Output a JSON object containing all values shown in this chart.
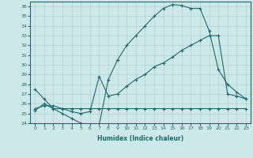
{
  "xlabel": "Humidex (Indice chaleur)",
  "xlim": [
    -0.5,
    23.5
  ],
  "ylim": [
    24,
    36.5
  ],
  "yticks": [
    24,
    25,
    26,
    27,
    28,
    29,
    30,
    31,
    32,
    33,
    34,
    35,
    36
  ],
  "xticks": [
    0,
    1,
    2,
    3,
    4,
    5,
    6,
    7,
    8,
    9,
    10,
    11,
    12,
    13,
    14,
    15,
    16,
    17,
    18,
    19,
    20,
    21,
    22,
    23
  ],
  "bg_color": "#cde8e8",
  "grid_color": "#b0d0d0",
  "line_color": "#1a6b6b",
  "curves": [
    {
      "x": [
        0,
        1,
        2,
        3,
        4,
        5,
        6,
        7,
        8,
        9,
        10,
        11,
        12,
        13,
        14,
        15,
        16,
        17,
        18,
        19,
        20,
        21,
        22,
        23
      ],
      "y": [
        27.5,
        26.5,
        25.5,
        25.0,
        24.5,
        24.0,
        23.8,
        23.8,
        28.5,
        30.5,
        32.0,
        33.0,
        34.0,
        35.0,
        35.8,
        36.2,
        36.1,
        35.8,
        35.8,
        33.5,
        29.5,
        28.0,
        27.2,
        26.5
      ]
    },
    {
      "x": [
        0,
        1,
        2,
        3,
        4,
        5,
        6,
        7,
        8,
        9,
        10,
        11,
        12,
        13,
        14,
        15,
        16,
        17,
        18,
        19,
        20,
        21,
        22,
        23
      ],
      "y": [
        25.5,
        25.8,
        25.8,
        25.5,
        25.2,
        25.0,
        25.2,
        28.8,
        26.8,
        27.0,
        27.8,
        28.5,
        29.0,
        29.8,
        30.2,
        30.8,
        31.5,
        32.0,
        32.5,
        33.0,
        33.0,
        27.0,
        26.8,
        26.5
      ]
    },
    {
      "x": [
        0,
        1,
        2,
        3,
        4,
        5,
        6,
        7,
        8,
        9,
        10,
        11,
        12,
        13,
        14,
        15,
        16,
        17,
        18,
        19,
        20,
        21,
        22,
        23
      ],
      "y": [
        25.3,
        26.0,
        25.5,
        25.5,
        25.5,
        25.5,
        25.5,
        25.5,
        25.5,
        25.5,
        25.5,
        25.5,
        25.5,
        25.5,
        25.5,
        25.5,
        25.5,
        25.5,
        25.5,
        25.5,
        25.5,
        25.5,
        25.5,
        25.5
      ]
    }
  ]
}
